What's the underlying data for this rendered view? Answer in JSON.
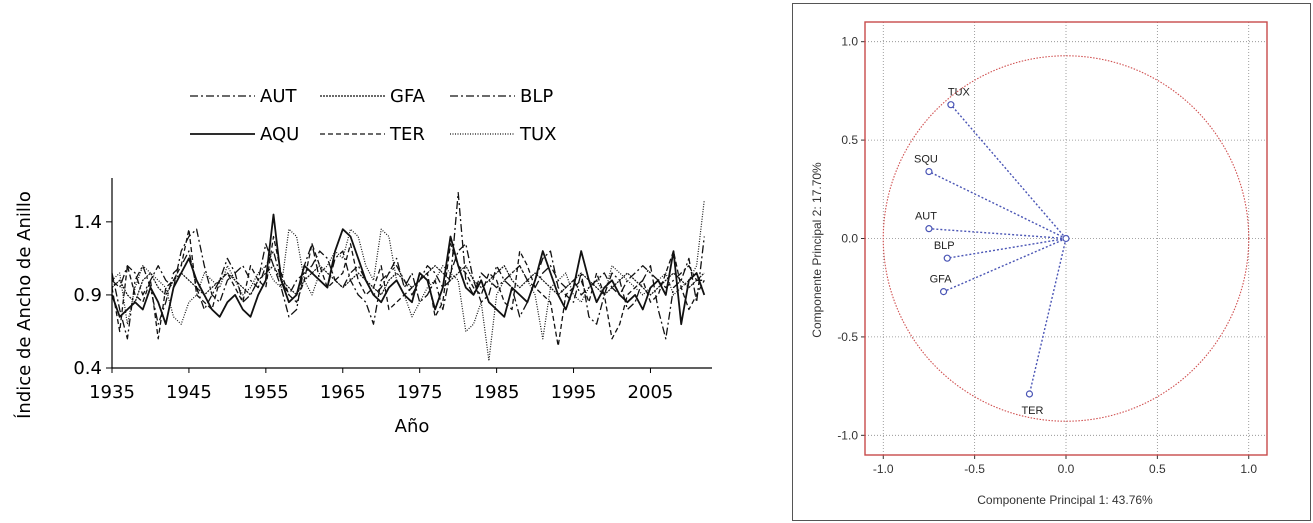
{
  "chart_data": [
    {
      "type": "line",
      "xlabel": "Año",
      "ylabel": "Índice de Ancho de Anillo",
      "xlim": [
        1935,
        2013
      ],
      "ylim": [
        0.4,
        1.7
      ],
      "x_ticks": [
        "1935",
        "1945",
        "1955",
        "1965",
        "1975",
        "1985",
        "1995",
        "2005"
      ],
      "y_ticks": [
        "0.4",
        "0.9",
        "1.4"
      ],
      "legend": [
        {
          "name": "AUT",
          "style": "dash-dot"
        },
        {
          "name": "GFA",
          "style": "dense-dash"
        },
        {
          "name": "BLP",
          "style": "dash-dot"
        },
        {
          "name": "AQU",
          "style": "solid"
        },
        {
          "name": "TER",
          "style": "dashed"
        },
        {
          "name": "TUX",
          "style": "dotted"
        }
      ],
      "x_start": 1935,
      "series": [
        {
          "name": "AUT",
          "values": [
            1.05,
            0.8,
            0.6,
            1.0,
            1.1,
            0.95,
            0.7,
            0.85,
            1.05,
            1.1,
            1.2,
            0.95,
            0.8,
            0.9,
            1.0,
            1.15,
            1.05,
            0.85,
            0.9,
            1.0,
            1.25,
            1.1,
            0.95,
            0.75,
            0.8,
            1.1,
            1.25,
            1.0,
            0.95,
            1.15,
            1.2,
            1.0,
            0.9,
            0.85,
            0.7,
            1.0,
            1.05,
            1.15,
            0.95,
            1.05,
            0.85,
            0.9,
            1.0,
            0.8,
            1.05,
            1.2,
            1.25,
            1.0,
            0.85,
            0.9,
            1.1,
            1.0,
            0.95,
            0.75,
            0.85,
            1.0,
            1.15,
            1.2,
            0.95,
            0.9,
            0.85,
            1.05,
            0.75,
            0.7,
            0.9,
            1.05,
            1.0,
            0.8,
            0.85,
            1.0,
            1.1,
            0.8,
            0.6,
            0.95,
            1.0,
            1.15,
            0.85,
            1.3
          ]
        },
        {
          "name": "GFA",
          "values": [
            0.95,
            1.0,
            0.9,
            0.85,
            1.0,
            1.05,
            0.95,
            0.9,
            1.0,
            1.05,
            1.0,
            0.95,
            0.9,
            0.95,
            1.0,
            1.05,
            1.0,
            0.95,
            0.9,
            1.0,
            1.05,
            1.1,
            1.0,
            0.95,
            0.9,
            1.0,
            1.05,
            1.1,
            1.05,
            1.0,
            0.95,
            1.0,
            1.05,
            1.0,
            0.95,
            0.9,
            1.0,
            1.05,
            1.0,
            0.95,
            1.0,
            1.05,
            1.1,
            1.05,
            1.0,
            1.05,
            1.1,
            1.0,
            0.95,
            1.0,
            1.05,
            1.1,
            1.0,
            0.95,
            1.0,
            1.05,
            1.0,
            0.95,
            0.9,
            0.95,
            1.0,
            1.05,
            1.0,
            0.95,
            0.9,
            0.95,
            1.0,
            1.05,
            1.0,
            0.95,
            0.9,
            0.95,
            1.0,
            1.05,
            1.0,
            0.95,
            1.0,
            1.05
          ]
        },
        {
          "name": "BLP",
          "values": [
            1.0,
            0.95,
            1.1,
            1.05,
            0.9,
            1.0,
            1.1,
            1.0,
            0.95,
            1.2,
            1.3,
            1.35,
            1.1,
            0.9,
            0.85,
            1.0,
            1.05,
            1.1,
            1.0,
            0.95,
            1.1,
            1.2,
            1.0,
            0.9,
            1.0,
            1.05,
            1.1,
            1.2,
            1.15,
            1.0,
            0.95,
            1.05,
            1.1,
            1.0,
            0.9,
            0.95,
            1.05,
            1.1,
            1.0,
            0.9,
            1.0,
            1.1,
            1.05,
            0.95,
            1.0,
            1.6,
            1.0,
            0.9,
            1.05,
            1.0,
            0.95,
            1.0,
            1.05,
            1.1,
            1.0,
            0.95,
            1.05,
            1.1,
            1.0,
            0.95,
            1.0,
            0.9,
            0.95,
            1.0,
            1.05,
            0.95,
            0.9,
            1.0,
            1.05,
            1.1,
            1.05,
            1.0,
            0.95,
            1.0,
            1.05,
            1.1,
            1.0,
            1.0
          ]
        },
        {
          "name": "AQU",
          "values": [
            0.9,
            0.75,
            0.8,
            0.85,
            0.8,
            0.95,
            0.85,
            0.7,
            0.95,
            1.05,
            1.15,
            1.0,
            0.9,
            0.8,
            0.75,
            0.85,
            0.9,
            0.8,
            0.75,
            0.9,
            1.0,
            1.45,
            1.0,
            0.85,
            0.9,
            1.1,
            1.05,
            1.0,
            0.95,
            1.2,
            1.35,
            1.3,
            1.15,
            1.0,
            0.9,
            0.85,
            0.95,
            1.0,
            0.9,
            0.85,
            1.05,
            1.0,
            0.8,
            0.95,
            1.3,
            1.1,
            0.95,
            0.9,
            1.0,
            0.85,
            0.8,
            0.75,
            0.95,
            0.9,
            0.85,
            1.0,
            1.2,
            1.05,
            0.9,
            0.8,
            0.95,
            1.2,
            1.0,
            0.85,
            0.95,
            1.0,
            0.9,
            0.85,
            0.9,
            0.8,
            0.95,
            1.0,
            0.9,
            1.2,
            0.7,
            1.0,
            1.05,
            0.9
          ]
        },
        {
          "name": "TER",
          "values": [
            0.95,
            0.65,
            1.1,
            0.9,
            0.85,
            1.0,
            0.6,
            0.95,
            1.0,
            1.1,
            1.35,
            0.9,
            0.85,
            0.8,
            1.0,
            1.05,
            0.95,
            0.85,
            1.1,
            1.0,
            0.95,
            1.3,
            1.05,
            0.9,
            0.85,
            1.0,
            1.25,
            1.1,
            0.95,
            1.0,
            1.05,
            1.25,
            1.0,
            0.9,
            0.95,
            1.1,
            0.8,
            0.85,
            0.9,
            0.95,
            1.0,
            1.05,
            0.75,
            0.85,
            1.25,
            1.1,
            1.05,
            0.95,
            0.9,
            1.05,
            1.0,
            0.85,
            0.8,
            1.2,
            1.1,
            0.95,
            0.9,
            0.85,
            0.55,
            0.9,
            0.95,
            1.0,
            0.85,
            1.05,
            0.9,
            0.6,
            0.7,
            0.9,
            0.95,
            1.0,
            0.85,
            0.9,
            1.05,
            1.2,
            0.95,
            0.8,
            0.9,
            1.0
          ]
        },
        {
          "name": "TUX",
          "values": [
            1.0,
            1.05,
            0.7,
            0.95,
            1.1,
            1.05,
            1.0,
            0.95,
            0.75,
            0.7,
            0.85,
            0.9,
            1.05,
            1.0,
            0.95,
            1.1,
            1.0,
            0.9,
            0.95,
            1.05,
            1.1,
            1.0,
            0.95,
            1.35,
            1.3,
            1.0,
            0.9,
            1.05,
            1.1,
            1.2,
            1.15,
            1.35,
            1.3,
            1.1,
            1.0,
            1.35,
            1.3,
            1.0,
            0.9,
            0.75,
            0.85,
            0.95,
            1.0,
            1.1,
            1.05,
            1.0,
            0.65,
            0.7,
            0.85,
            0.45,
            0.9,
            1.0,
            1.05,
            1.1,
            1.0,
            0.9,
            0.6,
            0.95,
            1.0,
            1.05,
            0.9,
            0.85,
            0.95,
            1.0,
            0.9,
            1.1,
            1.05,
            1.0,
            0.95,
            0.9,
            0.95,
            1.0,
            1.05,
            0.9,
            0.95,
            1.0,
            1.1,
            1.55
          ]
        }
      ]
    },
    {
      "type": "scatter",
      "xlabel": "Componente Principal 1: 43.76%",
      "ylabel": "Componente Principal 2: 17.70%",
      "xlim": [
        -1.1,
        1.1
      ],
      "ylim": [
        -1.1,
        1.1
      ],
      "x_ticks": [
        "-1.0",
        "-0.5",
        "0.0",
        "0.5",
        "1.0"
      ],
      "y_ticks": [
        "1.0",
        "0.5",
        "0.0",
        "-0.5",
        "-1.0"
      ],
      "grid": true,
      "unit_circle": true,
      "points": [
        {
          "label": "TUX",
          "x": -0.63,
          "y": 0.68
        },
        {
          "label": "SQU",
          "x": -0.75,
          "y": 0.34
        },
        {
          "label": "AUT",
          "x": -0.75,
          "y": 0.05
        },
        {
          "label": "BLP",
          "x": -0.65,
          "y": -0.1
        },
        {
          "label": "GFA",
          "x": -0.67,
          "y": -0.27
        },
        {
          "label": "TER",
          "x": -0.2,
          "y": -0.79
        }
      ],
      "colors": {
        "circle": "#d05050",
        "vectors": "#4a55b5",
        "frame": "#c84a4a"
      }
    }
  ]
}
